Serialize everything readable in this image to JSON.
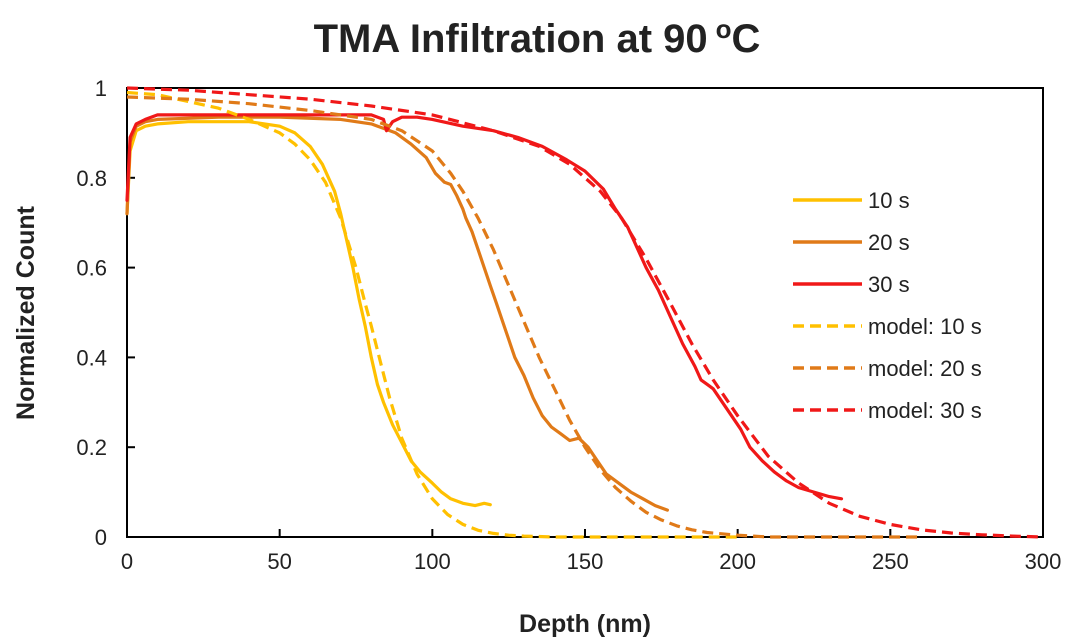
{
  "chart_data": {
    "type": "line",
    "title": "TMA Infiltration at 90",
    "title_unit": "C",
    "title_unit_prefix": "o",
    "xlabel": "Depth (nm)",
    "ylabel": "Normalized Count",
    "xlim": [
      0,
      300
    ],
    "ylim": [
      0,
      1
    ],
    "x_ticks": [
      "0",
      "50",
      "100",
      "150",
      "200",
      "250",
      "300"
    ],
    "y_ticks": [
      "0",
      "0.2",
      "0.4",
      "0.6",
      "0.8",
      "1"
    ],
    "grid": false,
    "legend_position": "right",
    "series": [
      {
        "name": "10 s",
        "color": "#FFC000",
        "dash": "solid",
        "points": [
          [
            0,
            0.72
          ],
          [
            1,
            0.86
          ],
          [
            3,
            0.905
          ],
          [
            6,
            0.915
          ],
          [
            10,
            0.92
          ],
          [
            20,
            0.925
          ],
          [
            30,
            0.925
          ],
          [
            40,
            0.925
          ],
          [
            50,
            0.915
          ],
          [
            55,
            0.9
          ],
          [
            60,
            0.87
          ],
          [
            64,
            0.83
          ],
          [
            68,
            0.77
          ],
          [
            70,
            0.72
          ],
          [
            72,
            0.66
          ],
          [
            74,
            0.6
          ],
          [
            76,
            0.53
          ],
          [
            78,
            0.47
          ],
          [
            80,
            0.4
          ],
          [
            82,
            0.34
          ],
          [
            84,
            0.3
          ],
          [
            87,
            0.25
          ],
          [
            90,
            0.21
          ],
          [
            93,
            0.17
          ],
          [
            96,
            0.145
          ],
          [
            100,
            0.12
          ],
          [
            103,
            0.1
          ],
          [
            106,
            0.085
          ],
          [
            110,
            0.075
          ],
          [
            114,
            0.07
          ],
          [
            117,
            0.075
          ],
          [
            119,
            0.072
          ]
        ]
      },
      {
        "name": "20 s",
        "color": "#E07A18",
        "dash": "solid",
        "points": [
          [
            0,
            0.72
          ],
          [
            1,
            0.88
          ],
          [
            3,
            0.915
          ],
          [
            6,
            0.925
          ],
          [
            10,
            0.93
          ],
          [
            30,
            0.935
          ],
          [
            50,
            0.935
          ],
          [
            70,
            0.93
          ],
          [
            80,
            0.92
          ],
          [
            88,
            0.9
          ],
          [
            93,
            0.875
          ],
          [
            98,
            0.845
          ],
          [
            101,
            0.81
          ],
          [
            104,
            0.79
          ],
          [
            106,
            0.785
          ],
          [
            108,
            0.76
          ],
          [
            110,
            0.73
          ],
          [
            111,
            0.71
          ],
          [
            113,
            0.68
          ],
          [
            115,
            0.64
          ],
          [
            117,
            0.6
          ],
          [
            119,
            0.56
          ],
          [
            121,
            0.52
          ],
          [
            123,
            0.48
          ],
          [
            125,
            0.44
          ],
          [
            127,
            0.4
          ],
          [
            130,
            0.36
          ],
          [
            133,
            0.31
          ],
          [
            136,
            0.27
          ],
          [
            139,
            0.245
          ],
          [
            142,
            0.23
          ],
          [
            145,
            0.215
          ],
          [
            148,
            0.22
          ],
          [
            151,
            0.2
          ],
          [
            154,
            0.17
          ],
          [
            157,
            0.14
          ],
          [
            161,
            0.12
          ],
          [
            165,
            0.1
          ],
          [
            169,
            0.085
          ],
          [
            173,
            0.07
          ],
          [
            177,
            0.06
          ]
        ]
      },
      {
        "name": "30 s",
        "color": "#F01818",
        "dash": "solid",
        "points": [
          [
            0,
            0.75
          ],
          [
            1,
            0.89
          ],
          [
            3,
            0.92
          ],
          [
            6,
            0.93
          ],
          [
            10,
            0.94
          ],
          [
            30,
            0.94
          ],
          [
            50,
            0.94
          ],
          [
            70,
            0.94
          ],
          [
            80,
            0.94
          ],
          [
            84,
            0.93
          ],
          [
            85,
            0.905
          ],
          [
            87,
            0.925
          ],
          [
            90,
            0.935
          ],
          [
            95,
            0.935
          ],
          [
            100,
            0.93
          ],
          [
            110,
            0.915
          ],
          [
            120,
            0.905
          ],
          [
            128,
            0.89
          ],
          [
            136,
            0.87
          ],
          [
            144,
            0.84
          ],
          [
            150,
            0.815
          ],
          [
            156,
            0.775
          ],
          [
            160,
            0.73
          ],
          [
            164,
            0.69
          ],
          [
            166,
            0.66
          ],
          [
            170,
            0.6
          ],
          [
            174,
            0.55
          ],
          [
            178,
            0.49
          ],
          [
            182,
            0.43
          ],
          [
            186,
            0.38
          ],
          [
            188,
            0.35
          ],
          [
            190,
            0.34
          ],
          [
            192,
            0.33
          ],
          [
            195,
            0.3
          ],
          [
            198,
            0.27
          ],
          [
            201,
            0.24
          ],
          [
            204,
            0.2
          ],
          [
            208,
            0.17
          ],
          [
            212,
            0.145
          ],
          [
            216,
            0.125
          ],
          [
            220,
            0.11
          ],
          [
            225,
            0.1
          ],
          [
            230,
            0.09
          ],
          [
            234,
            0.085
          ]
        ]
      },
      {
        "name": "model: 10 s",
        "color": "#FFC000",
        "dash": "dashed",
        "points": [
          [
            0,
            0.99
          ],
          [
            10,
            0.985
          ],
          [
            20,
            0.97
          ],
          [
            30,
            0.955
          ],
          [
            40,
            0.93
          ],
          [
            50,
            0.9
          ],
          [
            55,
            0.875
          ],
          [
            60,
            0.84
          ],
          [
            65,
            0.79
          ],
          [
            70,
            0.71
          ],
          [
            75,
            0.6
          ],
          [
            78,
            0.52
          ],
          [
            80,
            0.47
          ],
          [
            83,
            0.39
          ],
          [
            86,
            0.31
          ],
          [
            90,
            0.22
          ],
          [
            95,
            0.14
          ],
          [
            100,
            0.085
          ],
          [
            105,
            0.05
          ],
          [
            110,
            0.028
          ],
          [
            115,
            0.015
          ],
          [
            120,
            0.008
          ],
          [
            125,
            0.004
          ],
          [
            130,
            0.002
          ],
          [
            140,
            0.0
          ],
          [
            200,
            0.0
          ]
        ]
      },
      {
        "name": "model: 20 s",
        "color": "#E07A18",
        "dash": "dashed",
        "points": [
          [
            0,
            0.98
          ],
          [
            20,
            0.975
          ],
          [
            40,
            0.965
          ],
          [
            60,
            0.95
          ],
          [
            80,
            0.93
          ],
          [
            90,
            0.905
          ],
          [
            100,
            0.86
          ],
          [
            106,
            0.81
          ],
          [
            110,
            0.77
          ],
          [
            115,
            0.71
          ],
          [
            120,
            0.64
          ],
          [
            125,
            0.56
          ],
          [
            130,
            0.48
          ],
          [
            135,
            0.4
          ],
          [
            140,
            0.33
          ],
          [
            145,
            0.26
          ],
          [
            150,
            0.2
          ],
          [
            155,
            0.15
          ],
          [
            160,
            0.11
          ],
          [
            165,
            0.08
          ],
          [
            170,
            0.055
          ],
          [
            175,
            0.038
          ],
          [
            180,
            0.025
          ],
          [
            185,
            0.016
          ],
          [
            190,
            0.01
          ],
          [
            200,
            0.004
          ],
          [
            210,
            0.0
          ],
          [
            260,
            0.0
          ]
        ]
      },
      {
        "name": "model: 30 s",
        "color": "#F01818",
        "dash": "dashed",
        "points": [
          [
            0,
            1.0
          ],
          [
            20,
            0.995
          ],
          [
            40,
            0.985
          ],
          [
            60,
            0.975
          ],
          [
            80,
            0.96
          ],
          [
            100,
            0.94
          ],
          [
            120,
            0.905
          ],
          [
            135,
            0.87
          ],
          [
            145,
            0.83
          ],
          [
            155,
            0.77
          ],
          [
            162,
            0.71
          ],
          [
            170,
            0.62
          ],
          [
            178,
            0.52
          ],
          [
            185,
            0.43
          ],
          [
            192,
            0.35
          ],
          [
            200,
            0.27
          ],
          [
            210,
            0.18
          ],
          [
            220,
            0.12
          ],
          [
            230,
            0.075
          ],
          [
            240,
            0.046
          ],
          [
            250,
            0.028
          ],
          [
            260,
            0.016
          ],
          [
            270,
            0.009
          ],
          [
            280,
            0.005
          ],
          [
            290,
            0.002
          ],
          [
            300,
            0.0
          ]
        ]
      }
    ]
  }
}
